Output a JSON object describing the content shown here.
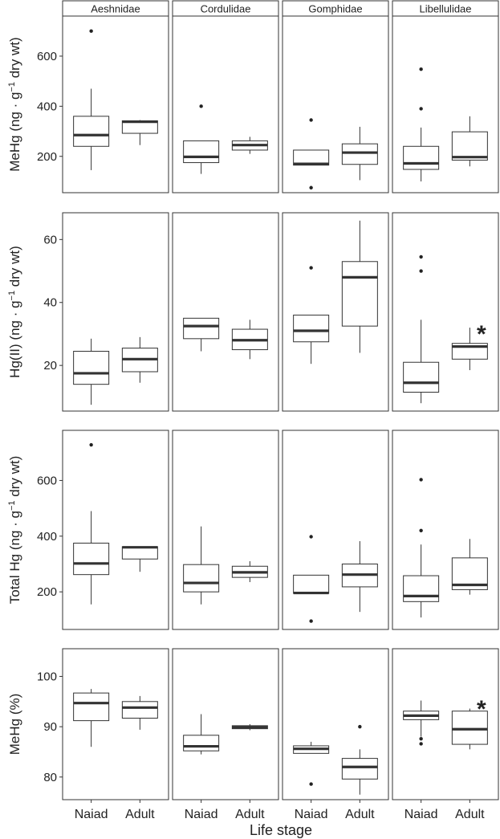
{
  "chart_data": {
    "type": "boxplot",
    "facets": [
      "Aeshnidae",
      "Cordulidae",
      "Gomphidae",
      "Libellulidae"
    ],
    "categories": [
      "Naiad",
      "Adult"
    ],
    "xlabel": "Life stage",
    "panels": [
      {
        "ylabel_main": "MeHg (ng · g",
        "ylabel_sup": "−1",
        "ylabel_tail": " dry wt)",
        "ylim": [
          55,
          760
        ],
        "yticks": [
          200,
          400,
          600
        ],
        "groups": [
          [
            {
              "min": 145,
              "q1": 240,
              "median": 285,
              "q3": 360,
              "max": 470,
              "outliers": [
                700
              ]
            },
            {
              "min": 245,
              "q1": 292,
              "median": 338,
              "q3": 342,
              "max": 345,
              "outliers": []
            }
          ],
          [
            {
              "min": 130,
              "q1": 175,
              "median": 198,
              "q3": 262,
              "max": 262,
              "outliers": [
                400
              ]
            },
            {
              "min": 210,
              "q1": 225,
              "median": 245,
              "q3": 262,
              "max": 278,
              "outliers": []
            }
          ],
          [
            {
              "min": 165,
              "q1": 165,
              "median": 170,
              "q3": 225,
              "max": 225,
              "outliers": [
                345,
                75
              ]
            },
            {
              "min": 105,
              "q1": 168,
              "median": 215,
              "q3": 250,
              "max": 318,
              "outliers": []
            }
          ],
          [
            {
              "min": 100,
              "q1": 148,
              "median": 172,
              "q3": 240,
              "max": 315,
              "outliers": [
                390,
                548
              ]
            },
            {
              "min": 160,
              "q1": 185,
              "median": 197,
              "q3": 298,
              "max": 360,
              "outliers": []
            }
          ]
        ],
        "annotations": []
      },
      {
        "ylabel_main": "Hg(II) (ng · g",
        "ylabel_sup": "−1",
        "ylabel_tail": " dry wt)",
        "ylim": [
          5.5,
          68.5
        ],
        "yticks": [
          20,
          40,
          60
        ],
        "groups": [
          [
            {
              "min": 7.5,
              "q1": 14,
              "median": 17.5,
              "q3": 24.5,
              "max": 28.5,
              "outliers": []
            },
            {
              "min": 14.5,
              "q1": 18,
              "median": 22,
              "q3": 25.5,
              "max": 29,
              "outliers": []
            }
          ],
          [
            {
              "min": 24.5,
              "q1": 28.5,
              "median": 32.5,
              "q3": 35,
              "max": 35,
              "outliers": []
            },
            {
              "min": 22,
              "q1": 25,
              "median": 28,
              "q3": 31.5,
              "max": 34.5,
              "outliers": []
            }
          ],
          [
            {
              "min": 20.5,
              "q1": 27.5,
              "median": 31,
              "q3": 36,
              "max": 36,
              "outliers": [
                51
              ]
            },
            {
              "min": 24,
              "q1": 32.5,
              "median": 48,
              "q3": 53,
              "max": 66,
              "outliers": []
            }
          ],
          [
            {
              "min": 8,
              "q1": 11.5,
              "median": 14.5,
              "q3": 21,
              "max": 34.5,
              "outliers": [
                50,
                54.5
              ]
            },
            {
              "min": 18.5,
              "q1": 22,
              "median": 26,
              "q3": 27,
              "max": 32,
              "outliers": []
            }
          ]
        ],
        "annotations": [
          {
            "facet": 3,
            "text": "*",
            "value": 31.5
          }
        ]
      },
      {
        "ylabel_main": "Total Hg (ng · g",
        "ylabel_sup": "−1",
        "ylabel_tail": " dry wt)",
        "ylim": [
          65,
          780
        ],
        "yticks": [
          200,
          400,
          600
        ],
        "groups": [
          [
            {
              "min": 155,
              "q1": 262,
              "median": 302,
              "q3": 375,
              "max": 490,
              "outliers": [
                728
              ]
            },
            {
              "min": 272,
              "q1": 318,
              "median": 360,
              "q3": 362,
              "max": 362,
              "outliers": []
            }
          ],
          [
            {
              "min": 155,
              "q1": 200,
              "median": 232,
              "q3": 298,
              "max": 435,
              "outliers": []
            },
            {
              "min": 235,
              "q1": 252,
              "median": 270,
              "q3": 292,
              "max": 310,
              "outliers": []
            }
          ],
          [
            {
              "min": 195,
              "q1": 195,
              "median": 196,
              "q3": 260,
              "max": 260,
              "outliers": [
                398,
                95
              ]
            },
            {
              "min": 128,
              "q1": 218,
              "median": 262,
              "q3": 300,
              "max": 382,
              "outliers": []
            }
          ],
          [
            {
              "min": 108,
              "q1": 165,
              "median": 185,
              "q3": 258,
              "max": 370,
              "outliers": [
                420,
                603
              ]
            },
            {
              "min": 190,
              "q1": 208,
              "median": 225,
              "q3": 322,
              "max": 390,
              "outliers": []
            }
          ]
        ],
        "annotations": []
      },
      {
        "ylabel_main": "MeHg (%)",
        "ylabel_sup": "",
        "ylabel_tail": "",
        "ylim": [
          75.5,
          105.5
        ],
        "yticks": [
          80,
          90,
          100
        ],
        "groups": [
          [
            {
              "min": 86,
              "q1": 91.2,
              "median": 94.7,
              "q3": 96.7,
              "max": 97.5,
              "outliers": []
            },
            {
              "min": 89.4,
              "q1": 91.7,
              "median": 93.8,
              "q3": 95,
              "max": 96.1,
              "outliers": []
            }
          ],
          [
            {
              "min": 84.5,
              "q1": 85.2,
              "median": 86.1,
              "q3": 88.3,
              "max": 92.5,
              "outliers": []
            },
            {
              "min": 89.3,
              "q1": 89.6,
              "median": 89.9,
              "q3": 90.2,
              "max": 90.5,
              "outliers": []
            }
          ],
          [
            {
              "min": 84.7,
              "q1": 84.7,
              "median": 85.6,
              "q3": 86.2,
              "max": 87,
              "outliers": [
                78.6
              ]
            },
            {
              "min": 76.5,
              "q1": 79.6,
              "median": 82,
              "q3": 83.7,
              "max": 85.5,
              "outliers": [
                90
              ]
            }
          ],
          [
            {
              "min": 88,
              "q1": 91.4,
              "median": 92.2,
              "q3": 93.1,
              "max": 95.2,
              "outliers": [
                87.6,
                86.6
              ]
            },
            {
              "min": 85.5,
              "q1": 86.5,
              "median": 89.5,
              "q3": 93.1,
              "max": 93.6,
              "outliers": []
            }
          ]
        ],
        "annotations": [
          {
            "facet": 3,
            "text": "*",
            "value": 94.5
          }
        ]
      }
    ]
  }
}
